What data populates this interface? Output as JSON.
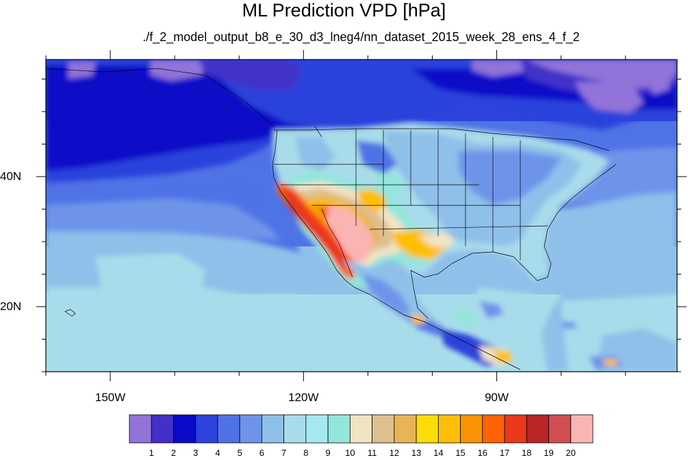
{
  "title": "ML Prediction VPD [hPa]",
  "subtitle": "./f_2_model_output_b8_e_30_d3_lneg4/nn_dataset_2015_week_28_ens_4_f_2",
  "map": {
    "projection": "cylindrical-equidistant",
    "lon_range": [
      -160,
      -62
    ],
    "lat_range": [
      10,
      58
    ],
    "lat_ticks": [
      {
        "value": 40,
        "label": "40N"
      },
      {
        "value": 20,
        "label": "20N"
      }
    ],
    "lon_ticks": [
      {
        "value": -150,
        "label": "150W"
      },
      {
        "value": -120,
        "label": "120W"
      },
      {
        "value": -90,
        "label": "90W"
      }
    ],
    "minor_lat_step": 5,
    "minor_lon_step": 10
  },
  "colorbar": {
    "labels": [
      "1",
      "2",
      "3",
      "4",
      "5",
      "6",
      "7",
      "8",
      "9",
      "10",
      "11",
      "12",
      "13",
      "14",
      "15",
      "16",
      "17",
      "18",
      "19",
      "20"
    ],
    "colors": [
      "#9173d9",
      "#4230c9",
      "#0a0ac8",
      "#2c43dc",
      "#4f73e6",
      "#6e94ea",
      "#8fc0ea",
      "#a9dcea",
      "#a4e8f0",
      "#93e6dc",
      "#f1e4c3",
      "#dfc091",
      "#e8b457",
      "#fcdc06",
      "#fdbf05",
      "#fa9305",
      "#fd6203",
      "#e9381a",
      "#ba2526",
      "#d14e52",
      "#fbb4b4"
    ]
  },
  "colors": {
    "ocean_low": "#0a0ac8",
    "coast_line": "#000000"
  }
}
